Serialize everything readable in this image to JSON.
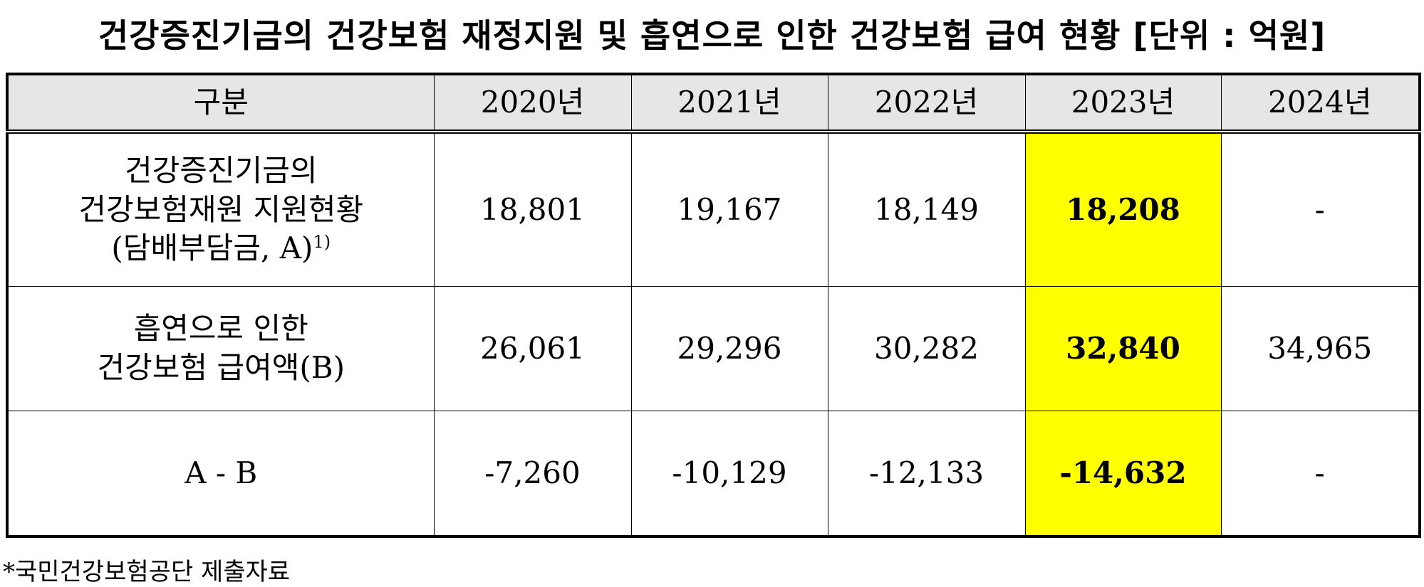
{
  "header": {
    "title": "건강증진기금의 건강보험 재정지원 및 흡연으로 인한 건강보험 급여 현황 [단위 : 억원]"
  },
  "table": {
    "columns": [
      "구분",
      "2020년",
      "2021년",
      "2022년",
      "2023년",
      "2024년"
    ],
    "rows": [
      {
        "label": [
          "건강증진기금의",
          "건강보험재원 지원현황",
          "(담배부담금, A)"
        ],
        "note": "1)",
        "cells": [
          "18,801",
          "19,167",
          "18,149",
          "18,208",
          "-"
        ]
      },
      {
        "label": [
          "흡연으로 인한",
          "건강보험 급여액(B)"
        ],
        "cells": [
          "26,061",
          "29,296",
          "30,282",
          "32,840",
          "34,965"
        ]
      },
      {
        "label": [
          "A - B"
        ],
        "cells": [
          "-7,260",
          "-10,129",
          "-12,133",
          "-14,632",
          "-"
        ]
      }
    ]
  },
  "footnote": "*국민건강보험공단 제출자료"
}
